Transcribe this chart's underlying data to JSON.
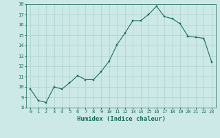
{
  "x": [
    0,
    1,
    2,
    3,
    4,
    5,
    6,
    7,
    8,
    9,
    10,
    11,
    12,
    13,
    14,
    15,
    16,
    17,
    18,
    19,
    20,
    21,
    22,
    23
  ],
  "y": [
    9.8,
    8.7,
    8.5,
    10.0,
    9.8,
    10.4,
    11.1,
    10.7,
    10.7,
    11.5,
    12.5,
    14.1,
    15.2,
    16.4,
    16.4,
    17.0,
    17.8,
    16.8,
    16.6,
    16.1,
    14.9,
    14.8,
    14.7,
    12.4
  ],
  "xlabel": "Humidex (Indice chaleur)",
  "line_color": "#1a6b5a",
  "marker_color": "#1a6b5a",
  "bg_color": "#cce9e7",
  "grid_color": "#b0d4d0",
  "axes_color": "#1a6b5a",
  "tick_color": "#1a6b5a",
  "ylim": [
    8,
    18
  ],
  "xlim": [
    -0.5,
    23.5
  ],
  "yticks": [
    8,
    9,
    10,
    11,
    12,
    13,
    14,
    15,
    16,
    17,
    18
  ],
  "xticks": [
    0,
    1,
    2,
    3,
    4,
    5,
    6,
    7,
    8,
    9,
    10,
    11,
    12,
    13,
    14,
    15,
    16,
    17,
    18,
    19,
    20,
    21,
    22,
    23
  ],
  "tick_fontsize": 5,
  "xlabel_fontsize": 6.5
}
